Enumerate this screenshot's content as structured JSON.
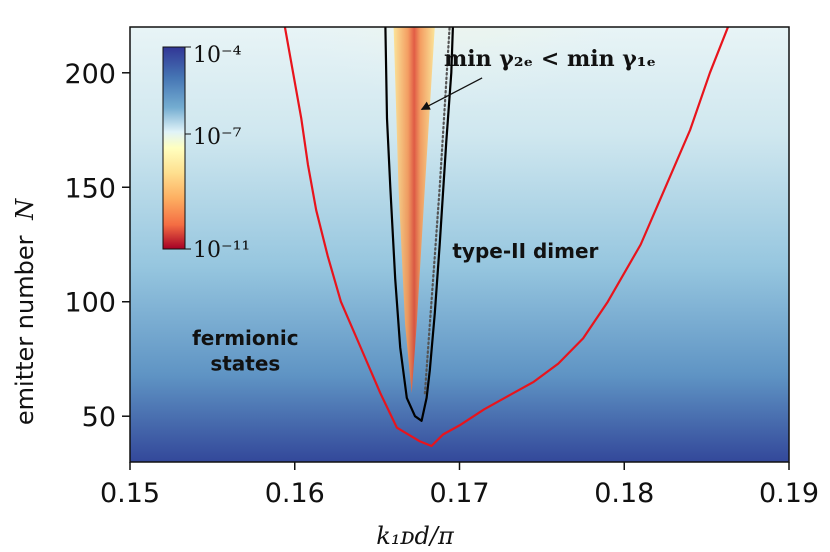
{
  "chart_data": {
    "type": "heatmap",
    "title": "",
    "xlabel": "k_{1D}d/π",
    "xlabel_display": "k₁ᴅd/π",
    "ylabel": "emitter number",
    "ylabel_symbol": "N",
    "xlim": [
      0.15,
      0.19
    ],
    "ylim": [
      30,
      220
    ],
    "x_ticks": [
      0.15,
      0.16,
      0.17,
      0.18,
      0.19
    ],
    "x_tick_labels": [
      "0.15",
      "0.16",
      "0.17",
      "0.18",
      "0.19"
    ],
    "y_ticks": [
      50,
      100,
      150,
      200
    ],
    "y_tick_labels": [
      "50",
      "100",
      "150",
      "200"
    ],
    "colorbar": {
      "scale": "log",
      "range": [
        1e-11,
        0.0001
      ],
      "colormap": "RdYlBu",
      "tick_labels": [
        "10−4",
        "10−7",
        "10−11"
      ],
      "tick_values": [
        0.0001,
        1e-07,
        1e-11
      ],
      "placement": "upper-left inset"
    },
    "series": [
      {
        "name": "red boundary",
        "color": "#e8141c",
        "points": [
          [
            0.1594,
            220
          ],
          [
            0.1599,
            200
          ],
          [
            0.1604,
            180
          ],
          [
            0.1608,
            160
          ],
          [
            0.1613,
            140
          ],
          [
            0.162,
            120
          ],
          [
            0.1628,
            100
          ],
          [
            0.164,
            80
          ],
          [
            0.1652,
            60
          ],
          [
            0.1662,
            45
          ],
          [
            0.1676,
            39
          ],
          [
            0.1683,
            37
          ],
          [
            0.169,
            42
          ],
          [
            0.17,
            46
          ],
          [
            0.1715,
            53
          ],
          [
            0.173,
            59
          ],
          [
            0.1745,
            65
          ],
          [
            0.176,
            73
          ],
          [
            0.1775,
            84
          ],
          [
            0.179,
            100
          ],
          [
            0.181,
            125
          ],
          [
            0.1825,
            150
          ],
          [
            0.184,
            175
          ],
          [
            0.1852,
            200
          ],
          [
            0.1863,
            220
          ]
        ]
      },
      {
        "name": "black boundary",
        "color": "#000000",
        "points": [
          [
            0.1655,
            220
          ],
          [
            0.1656,
            180
          ],
          [
            0.1658,
            150
          ],
          [
            0.1661,
            110
          ],
          [
            0.1664,
            80
          ],
          [
            0.1668,
            58
          ],
          [
            0.1673,
            50
          ],
          [
            0.1677,
            48
          ],
          [
            0.168,
            58
          ],
          [
            0.1682,
            70
          ],
          [
            0.1685,
            95
          ],
          [
            0.1688,
            125
          ],
          [
            0.1692,
            170
          ],
          [
            0.1695,
            200
          ],
          [
            0.1696,
            220
          ]
        ]
      }
    ],
    "annotations": [
      {
        "text_id": "dimer",
        "text": "type-II dimer",
        "x": 0.174,
        "y": 119
      },
      {
        "text_id": "fermionic_1",
        "text": "fermionic",
        "x": 0.157,
        "y": 81
      },
      {
        "text_id": "fermionic_2",
        "text": "states",
        "x": 0.157,
        "y": 70
      },
      {
        "text_id": "min",
        "text": "min γ₂ₑ < min γ₁ₑ",
        "x": 0.1755,
        "y": 203,
        "arrow_to": [
          0.1677,
          184
        ]
      }
    ]
  }
}
